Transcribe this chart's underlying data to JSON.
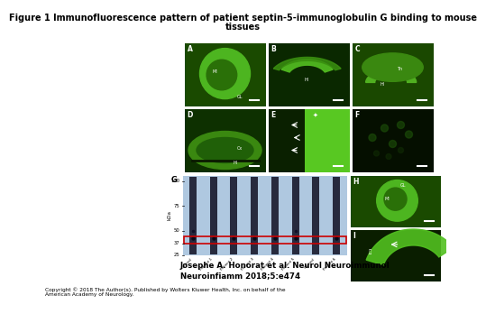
{
  "title_line1": "Figure 1 Immunofluorescence pattern of patient septin-5-immunoglobulin G binding to mouse",
  "title_line2": "tissues",
  "citation_line1": "Josephe A. Honorat et al. Neurol Neuroimmunol",
  "citation_line2": "Neuroinfiamm 2018;5:e474",
  "copyright": "Copyright © 2018 The Author(s). Published by Wolters Kluwer Health, Inc. on behalf of the\nAmerican Academy of Neurology.",
  "background_color": "#ffffff",
  "title_fontsize": 7.0,
  "citation_fontsize": 6.2,
  "copyright_fontsize": 4.2,
  "blot_bg": "#afc8e0",
  "red_box_color": "#cc0000",
  "ytick_labels": [
    "100",
    "75",
    "50",
    "37",
    "25"
  ],
  "ytick_vals": [
    100,
    75,
    50,
    37,
    25
  ],
  "blot_samples": [
    "Control",
    "Patient 1",
    "Patient 2",
    "Patient 3",
    "Patient 4",
    "Patient 5",
    "Control",
    "Patient 6"
  ]
}
